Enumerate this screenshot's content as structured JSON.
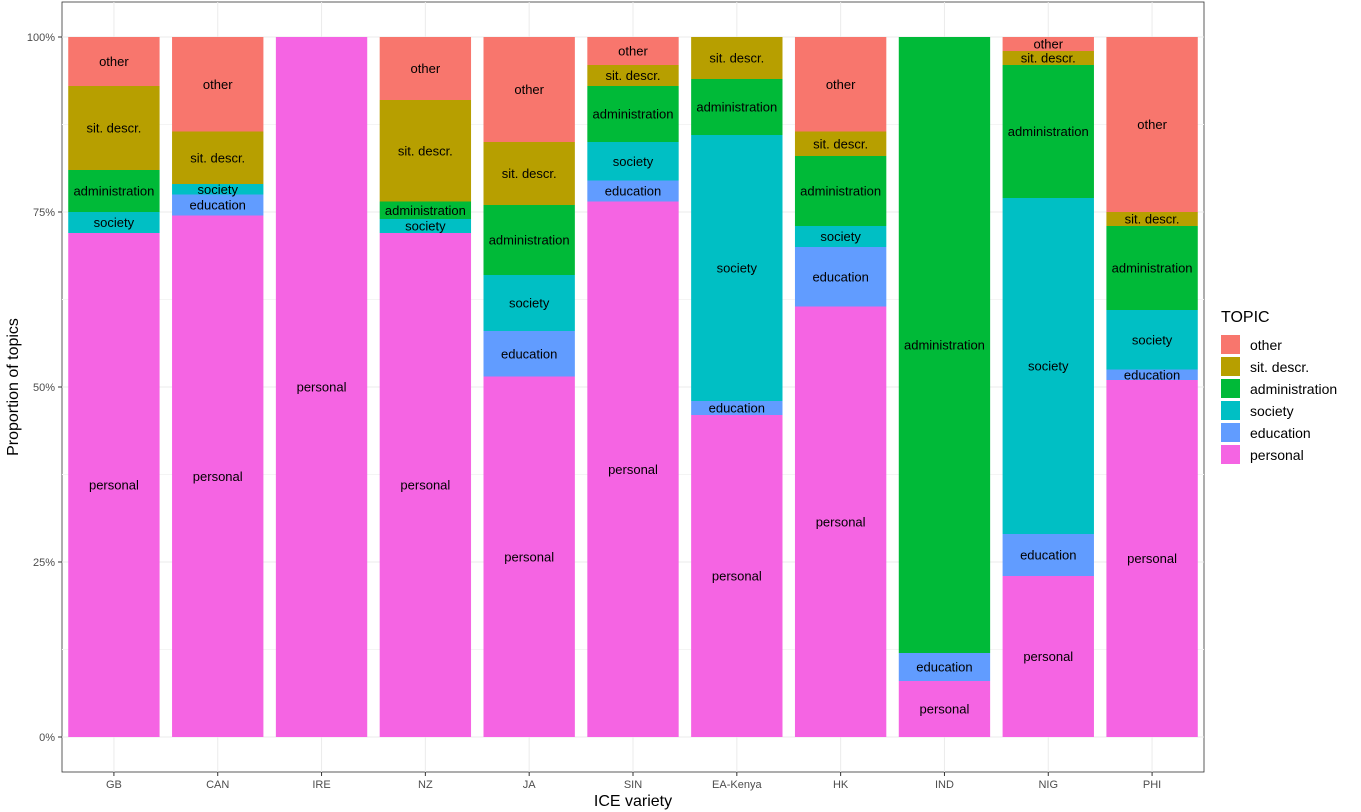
{
  "chart_data": {
    "type": "bar",
    "stacked": true,
    "percent_stacked": true,
    "xlabel": "ICE variety",
    "ylabel": "Proportion of topics",
    "ylim": [
      0,
      1
    ],
    "yticks": [
      0,
      0.25,
      0.5,
      0.75,
      1.0
    ],
    "ytick_labels": [
      "0%",
      "25%",
      "50%",
      "75%",
      "100%"
    ],
    "grid": true,
    "legend": {
      "title": "TOPIC",
      "placement": "right",
      "entries": [
        "other",
        "sit. descr.",
        "administration",
        "society",
        "education",
        "personal"
      ]
    },
    "categories": [
      "GB",
      "CAN",
      "IRE",
      "NZ",
      "JA",
      "SIN",
      "EA-Kenya",
      "HK",
      "IND",
      "NIG",
      "PHI"
    ],
    "series": [
      {
        "name": "personal",
        "color": "#f564e3",
        "values": [
          0.72,
          0.745,
          1.0,
          0.72,
          0.515,
          0.765,
          0.46,
          0.615,
          0.08,
          0.23,
          0.51
        ]
      },
      {
        "name": "education",
        "color": "#619cff",
        "values": [
          0.0,
          0.03,
          0.0,
          0.0,
          0.065,
          0.03,
          0.02,
          0.085,
          0.04,
          0.06,
          0.015
        ]
      },
      {
        "name": "society",
        "color": "#00bfc4",
        "values": [
          0.03,
          0.015,
          0.0,
          0.02,
          0.08,
          0.055,
          0.38,
          0.03,
          0.0,
          0.48,
          0.085
        ]
      },
      {
        "name": "administration",
        "color": "#00ba38",
        "values": [
          0.06,
          0.0,
          0.0,
          0.025,
          0.1,
          0.08,
          0.08,
          0.1,
          0.88,
          0.19,
          0.12
        ]
      },
      {
        "name": "sit. descr.",
        "color": "#b79f00",
        "values": [
          0.12,
          0.075,
          0.0,
          0.145,
          0.09,
          0.03,
          0.06,
          0.035,
          0.0,
          0.02,
          0.02
        ]
      },
      {
        "name": "other",
        "color": "#f8766d",
        "values": [
          0.07,
          0.135,
          0.0,
          0.09,
          0.15,
          0.04,
          0.0,
          0.135,
          0.0,
          0.02,
          0.25
        ]
      }
    ]
  }
}
